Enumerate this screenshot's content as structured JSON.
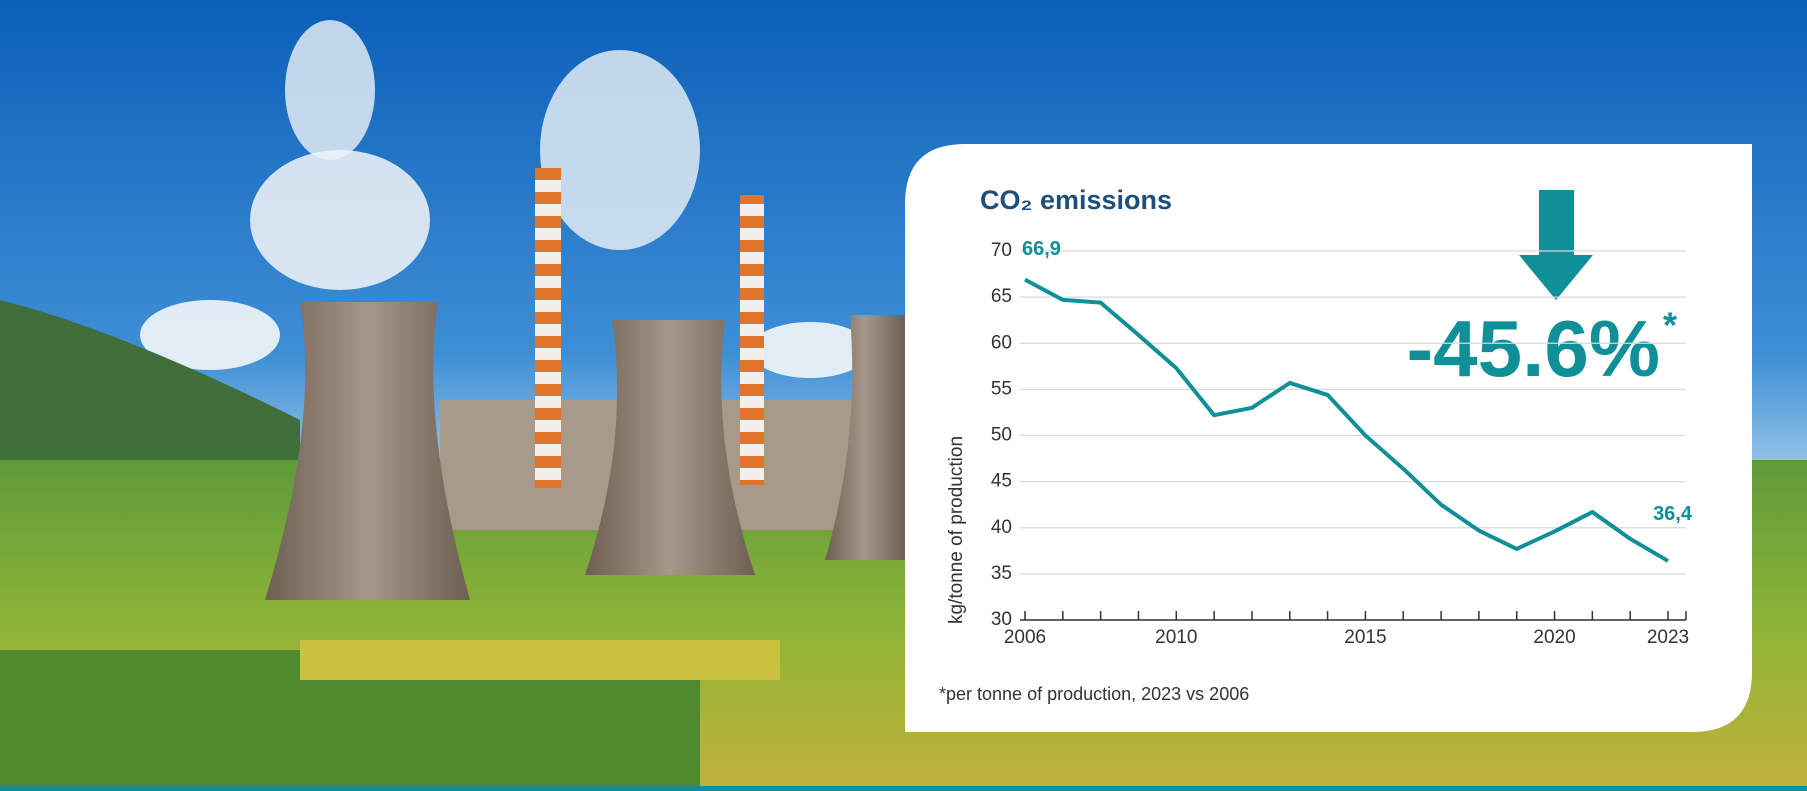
{
  "chart_data": {
    "type": "line",
    "title": "CO₂ emissions",
    "y_label": "kg/tonne of production",
    "change": "-45.6%",
    "change_mark": "*",
    "footnote": "*per tonne of production, 2023 vs 2006",
    "x": [
      2006,
      2007,
      2008,
      2009,
      2010,
      2011,
      2012,
      2013,
      2014,
      2015,
      2016,
      2017,
      2018,
      2019,
      2020,
      2021,
      2022,
      2023
    ],
    "series": [
      {
        "name": "CO₂ emissions",
        "color": "#0f8f98",
        "values": [
          66.9,
          64.7,
          64.4,
          60.9,
          57.3,
          52.2,
          53.0,
          55.7,
          54.4,
          50.0,
          46.4,
          42.5,
          39.7,
          37.7,
          39.6,
          41.7,
          38.8,
          36.4
        ],
        "value_labels": [
          "66,9",
          null,
          null,
          null,
          null,
          null,
          null,
          null,
          null,
          null,
          null,
          null,
          null,
          null,
          null,
          null,
          null,
          "36,4"
        ]
      }
    ],
    "xlim": [
      2006,
      2023
    ],
    "xticks": [
      2006,
      2010,
      2015,
      2020,
      2023
    ],
    "ylim": [
      30,
      70
    ],
    "yticks": [
      30,
      35,
      40,
      45,
      50,
      55,
      60,
      65,
      70
    ],
    "grid": true
  }
}
